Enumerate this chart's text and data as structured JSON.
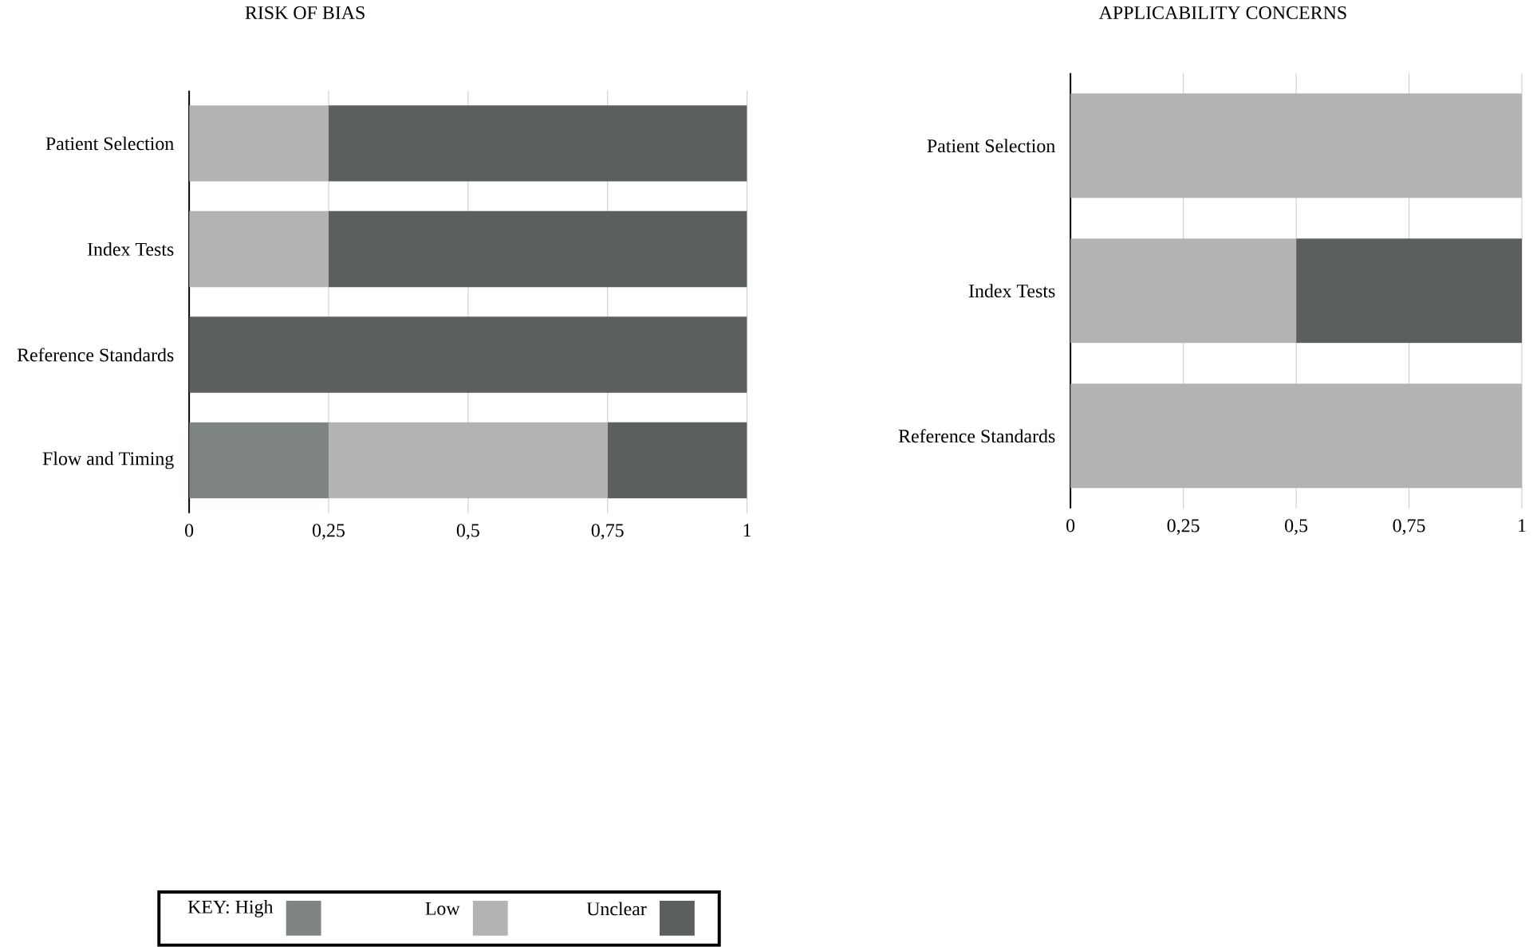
{
  "chart_data": [
    {
      "type": "bar",
      "orientation": "horizontal",
      "stacked": true,
      "title": "RISK OF BIAS",
      "categories": [
        "Patient Selection",
        "Index Tests",
        "Reference Standards",
        "Flow and Timing"
      ],
      "series": [
        {
          "name": "High",
          "color": "#7f8583",
          "values": [
            null,
            null,
            null,
            0.25
          ]
        },
        {
          "name": "Low",
          "color": "#b3b3b3",
          "values": [
            0.25,
            0.25,
            null,
            0.5
          ]
        },
        {
          "name": "Unclear",
          "color": "#5b5f5e",
          "values": [
            0.75,
            0.75,
            1,
            0.25
          ]
        }
      ],
      "xlim": [
        0,
        1
      ],
      "xticks": [
        0,
        {
          "value": 0.25,
          "label": "0,25"
        },
        {
          "value": 0.5,
          "label": "0,5"
        },
        {
          "value": 0.75,
          "label": "0,75"
        },
        1
      ],
      "grid": "x",
      "legend": "bottom",
      "legend_title": "KEY:"
    },
    {
      "type": "bar",
      "orientation": "horizontal",
      "stacked": true,
      "title": "APPLICABILITY CONCERNS",
      "categories": [
        "Patient Selection",
        "Index Tests",
        "Reference Standards"
      ],
      "series": [
        {
          "color": "#b3b3b3",
          "values": [
            1,
            0.5,
            1
          ]
        },
        {
          "color": "#5b5f5e",
          "values": [
            null,
            0.5,
            null
          ]
        }
      ],
      "xlim": [
        0,
        1
      ],
      "xticks": [
        0,
        {
          "value": 0.25,
          "label": "0,25"
        },
        {
          "value": 0.5,
          "label": "0,5"
        },
        {
          "value": 0.75,
          "label": "0,75"
        },
        1
      ],
      "grid": "x"
    }
  ]
}
